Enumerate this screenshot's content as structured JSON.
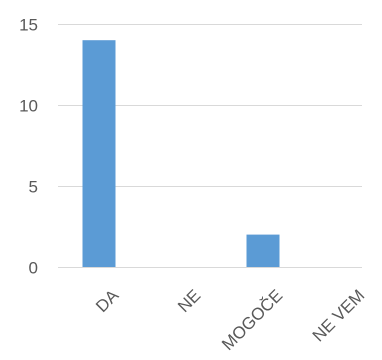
{
  "chart_data": {
    "type": "bar",
    "categories": [
      "DA",
      "NE",
      "MOGOČE",
      "NE VEM"
    ],
    "values": [
      14,
      0,
      2,
      0
    ],
    "y_ticks": [
      0,
      5,
      10,
      15
    ],
    "ylim": [
      0,
      15
    ],
    "grid": true,
    "legend": "none",
    "title": "",
    "xlabel": "",
    "ylabel": "",
    "colors": {
      "bar": "#5b9bd5",
      "grid": "#d9d9d9",
      "text": "#595959"
    }
  }
}
